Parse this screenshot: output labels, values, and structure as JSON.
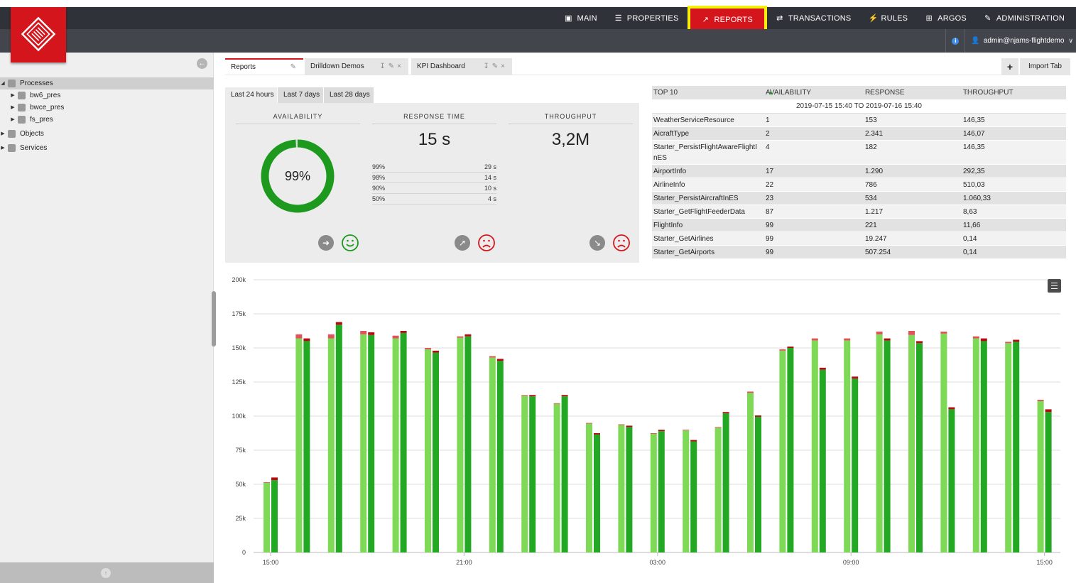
{
  "topnav": {
    "items": [
      {
        "label": "MAIN",
        "icon": "monitor-icon",
        "active": false
      },
      {
        "label": "PROPERTIES",
        "icon": "list-icon",
        "active": false
      },
      {
        "label": "REPORTS",
        "icon": "chart-icon",
        "active": true
      },
      {
        "label": "TRANSACTIONS",
        "icon": "arrows-icon",
        "active": false
      },
      {
        "label": "RULES",
        "icon": "bolt-icon",
        "active": false
      },
      {
        "label": "ARGOS",
        "icon": "plus-square-icon",
        "active": false
      },
      {
        "label": "ADMINISTRATION",
        "icon": "wrench-icon",
        "active": false
      }
    ],
    "active_color": "#d5151c",
    "highlight_color": "#f6ee0c"
  },
  "user": {
    "name": "admin@njams-flightdemo"
  },
  "sidebar": {
    "tree": [
      {
        "label": "Processes",
        "level": 0,
        "icon": "process-icon",
        "selected": true,
        "expanded": true
      },
      {
        "label": "bw6_pres",
        "level": 1,
        "icon": "bw-icon",
        "selected": false
      },
      {
        "label": "bwce_pres",
        "level": 1,
        "icon": "bw-icon",
        "selected": false
      },
      {
        "label": "fs_pres",
        "level": 1,
        "icon": "home-icon",
        "selected": false
      },
      {
        "label": "Objects",
        "level": 0,
        "icon": "objects-icon",
        "selected": false
      },
      {
        "label": "Services",
        "level": 0,
        "icon": "gear-icon",
        "selected": false
      }
    ]
  },
  "tabs": [
    {
      "label": "Reports",
      "active": true
    },
    {
      "label": "Drilldown Demos",
      "active": false
    },
    {
      "label": "KPI Dashboard",
      "active": false
    }
  ],
  "import": {
    "plus": "+",
    "label": "Import Tab"
  },
  "periods": [
    {
      "label": "Last 24 hours",
      "active": true
    },
    {
      "label": "Last 7 days",
      "active": false
    },
    {
      "label": "Last 28 days",
      "active": false
    }
  ],
  "kpi": {
    "availability": {
      "title": "AVAILABILITY",
      "value": "99%",
      "fraction": 0.99,
      "trend": "right",
      "mood": "happy"
    },
    "response": {
      "title": "RESPONSE TIME",
      "value": "15 s",
      "percentiles": [
        {
          "p": "99%",
          "v": "29 s"
        },
        {
          "p": "98%",
          "v": "14 s"
        },
        {
          "p": "90%",
          "v": "10 s"
        },
        {
          "p": "50%",
          "v": "4 s"
        }
      ],
      "trend": "up",
      "mood": "sad"
    },
    "throughput": {
      "title": "THROUGHPUT",
      "value": "3,2M",
      "trend": "down",
      "mood": "sad"
    }
  },
  "top10": {
    "headers": [
      "TOP 10",
      "AVAILABILITY IN %",
      "RESPONSE IN MS",
      "THROUGHPUT IN K"
    ],
    "range": "2019-07-15 15:40 TO 2019-07-16 15:40",
    "rows": [
      {
        "name": "WeatherServiceResource",
        "avail": "1",
        "resp": "153",
        "thr": "146,35"
      },
      {
        "name": "AicraftType",
        "avail": "2",
        "resp": "2.341",
        "thr": "146,07"
      },
      {
        "name": "Starter_PersistFlightAwareFlightInES",
        "avail": "4",
        "resp": "182",
        "thr": "146,35"
      },
      {
        "name": "AirportInfo",
        "avail": "17",
        "resp": "1.290",
        "thr": "292,35"
      },
      {
        "name": "AirlineInfo",
        "avail": "22",
        "resp": "786",
        "thr": "510,03"
      },
      {
        "name": "Starter_PersistAircraftInES",
        "avail": "23",
        "resp": "534",
        "thr": "1.060,33"
      },
      {
        "name": "Starter_GetFlightFeederData",
        "avail": "87",
        "resp": "1.217",
        "thr": "8,63"
      },
      {
        "name": "FlightInfo",
        "avail": "99",
        "resp": "221",
        "thr": "11,66"
      },
      {
        "name": "Starter_GetAirlines",
        "avail": "99",
        "resp": "19.247",
        "thr": "0,14"
      },
      {
        "name": "Starter_GetAirports",
        "avail": "99",
        "resp": "507.254",
        "thr": "0,14"
      }
    ]
  },
  "chart_data": {
    "type": "bar",
    "stacked": true,
    "ylim": [
      0,
      200000
    ],
    "yticks": [
      0,
      25000,
      50000,
      75000,
      100000,
      125000,
      150000,
      175000,
      200000
    ],
    "ytick_labels": [
      "0",
      "25k",
      "50k",
      "75k",
      "100k",
      "125k",
      "150k",
      "175k",
      "200k"
    ],
    "xtick_labels": [
      {
        "label": "15:00",
        "index": 0
      },
      {
        "label": "21:00",
        "index": 6
      },
      {
        "label": "03:00",
        "index": 12
      },
      {
        "label": "09:00",
        "index": 18
      },
      {
        "label": "15:00",
        "index": 24
      }
    ],
    "grid": true,
    "colors": {
      "light_ok": "#7ed957",
      "light_err": "#e0535b",
      "dark_ok": "#22a822",
      "dark_err": "#b30d14"
    },
    "groups": [
      {
        "a_ok": 51000,
        "a_err": 500,
        "b_ok": 53000,
        "b_err": 2000
      },
      {
        "a_ok": 157000,
        "a_err": 3000,
        "b_ok": 155000,
        "b_err": 2000
      },
      {
        "a_ok": 157000,
        "a_err": 3000,
        "b_ok": 167000,
        "b_err": 2000
      },
      {
        "a_ok": 160000,
        "a_err": 2500,
        "b_ok": 159500,
        "b_err": 2000
      },
      {
        "a_ok": 157000,
        "a_err": 2000,
        "b_ok": 161000,
        "b_err": 1500
      },
      {
        "a_ok": 149000,
        "a_err": 1000,
        "b_ok": 146500,
        "b_err": 1500
      },
      {
        "a_ok": 157500,
        "a_err": 1000,
        "b_ok": 158500,
        "b_err": 1500
      },
      {
        "a_ok": 143000,
        "a_err": 1000,
        "b_ok": 140500,
        "b_err": 1500
      },
      {
        "a_ok": 115000,
        "a_err": 500,
        "b_ok": 114500,
        "b_err": 1000
      },
      {
        "a_ok": 109000,
        "a_err": 500,
        "b_ok": 114500,
        "b_err": 1000
      },
      {
        "a_ok": 94500,
        "a_err": 500,
        "b_ok": 86500,
        "b_err": 1000
      },
      {
        "a_ok": 93500,
        "a_err": 500,
        "b_ok": 92000,
        "b_err": 1000
      },
      {
        "a_ok": 87000,
        "a_err": 500,
        "b_ok": 89000,
        "b_err": 1000
      },
      {
        "a_ok": 89500,
        "a_err": 500,
        "b_ok": 81500,
        "b_err": 1000
      },
      {
        "a_ok": 91500,
        "a_err": 500,
        "b_ok": 102000,
        "b_err": 1000
      },
      {
        "a_ok": 117000,
        "a_err": 1000,
        "b_ok": 99500,
        "b_err": 1000
      },
      {
        "a_ok": 148000,
        "a_err": 1000,
        "b_ok": 150000,
        "b_err": 1000
      },
      {
        "a_ok": 155500,
        "a_err": 1500,
        "b_ok": 134000,
        "b_err": 1500
      },
      {
        "a_ok": 155500,
        "a_err": 1500,
        "b_ok": 127500,
        "b_err": 1500
      },
      {
        "a_ok": 160000,
        "a_err": 2000,
        "b_ok": 155500,
        "b_err": 1500
      },
      {
        "a_ok": 159500,
        "a_err": 3000,
        "b_ok": 153500,
        "b_err": 1500
      },
      {
        "a_ok": 160500,
        "a_err": 1500,
        "b_ok": 105000,
        "b_err": 1500
      },
      {
        "a_ok": 157000,
        "a_err": 1500,
        "b_ok": 155000,
        "b_err": 2000
      },
      {
        "a_ok": 153500,
        "a_err": 1000,
        "b_ok": 154500,
        "b_err": 1500
      },
      {
        "a_ok": 111000,
        "a_err": 1000,
        "b_ok": 103000,
        "b_err": 2000
      }
    ]
  }
}
